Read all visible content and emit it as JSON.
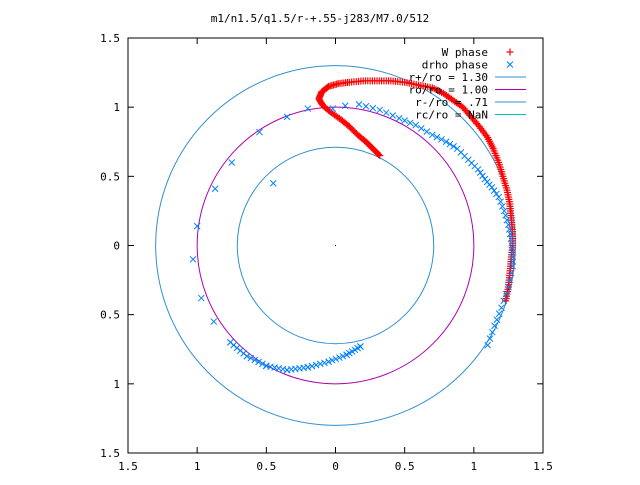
{
  "chart_data": {
    "type": "scatter",
    "title": "m1/n1.5/q1.5/r-+.55-j283/M7.0/512",
    "xlabel": "",
    "ylabel": "",
    "xlim": [
      -1.5,
      1.5
    ],
    "ylim": [
      -1.5,
      1.5
    ],
    "x_ticks": [
      {
        "value": -1.5,
        "label": "1.5"
      },
      {
        "value": -1.0,
        "label": "1"
      },
      {
        "value": -0.5,
        "label": "0.5"
      },
      {
        "value": 0.0,
        "label": "0"
      },
      {
        "value": 0.5,
        "label": "0.5"
      },
      {
        "value": 1.0,
        "label": "1"
      },
      {
        "value": 1.5,
        "label": "1.5"
      }
    ],
    "y_ticks": [
      {
        "value": 1.5,
        "label": "1.5"
      },
      {
        "value": 1.0,
        "label": "1"
      },
      {
        "value": 0.5,
        "label": "0.5"
      },
      {
        "value": 0.0,
        "label": "0"
      },
      {
        "value": -0.5,
        "label": "0.5"
      },
      {
        "value": -1.0,
        "label": "1"
      },
      {
        "value": -1.5,
        "label": "1.5"
      }
    ],
    "grid": false,
    "legend_position": "top-right",
    "series": [
      {
        "name": "W phase",
        "marker": "plus",
        "color": "#ff0000",
        "points": [
          [
            0.32,
            0.65
          ],
          [
            0.27,
            0.7
          ],
          [
            0.22,
            0.75
          ],
          [
            0.16,
            0.8
          ],
          [
            0.1,
            0.86
          ],
          [
            0.04,
            0.91
          ],
          [
            -0.03,
            0.96
          ],
          [
            -0.09,
            1.01
          ],
          [
            -0.12,
            1.06
          ],
          [
            -0.1,
            1.11
          ],
          [
            -0.05,
            1.15
          ],
          [
            0.02,
            1.17
          ],
          [
            0.1,
            1.18
          ],
          [
            0.2,
            1.19
          ],
          [
            0.3,
            1.19
          ],
          [
            0.4,
            1.19
          ],
          [
            0.5,
            1.18
          ],
          [
            0.6,
            1.16
          ],
          [
            0.7,
            1.14
          ],
          [
            0.78,
            1.1
          ],
          [
            0.85,
            1.05
          ],
          [
            0.92,
            1.0
          ],
          [
            0.98,
            0.93
          ],
          [
            1.04,
            0.86
          ],
          [
            1.1,
            0.78
          ],
          [
            1.14,
            0.7
          ],
          [
            1.18,
            0.6
          ],
          [
            1.21,
            0.5
          ],
          [
            1.24,
            0.4
          ],
          [
            1.26,
            0.3
          ],
          [
            1.27,
            0.2
          ],
          [
            1.28,
            0.1
          ],
          [
            1.28,
            0.0
          ],
          [
            1.27,
            -0.1
          ],
          [
            1.26,
            -0.2
          ],
          [
            1.25,
            -0.3
          ],
          [
            1.23,
            -0.4
          ]
        ]
      },
      {
        "name": "drho phase",
        "marker": "cross",
        "color": "#0080ff",
        "points": [
          [
            -0.2,
            0.99
          ],
          [
            -0.35,
            0.93
          ],
          [
            -0.55,
            0.82
          ],
          [
            -0.75,
            0.6
          ],
          [
            -0.87,
            0.41
          ],
          [
            -1.0,
            0.14
          ],
          [
            -1.03,
            -0.1
          ],
          [
            -0.97,
            -0.38
          ],
          [
            -0.88,
            -0.55
          ],
          [
            -0.76,
            -0.7
          ],
          [
            -0.64,
            -0.8
          ],
          [
            -0.5,
            -0.87
          ],
          [
            -0.35,
            -0.9
          ],
          [
            -0.2,
            -0.88
          ],
          [
            -0.05,
            -0.84
          ],
          [
            0.08,
            -0.79
          ],
          [
            0.18,
            -0.73
          ],
          [
            0.17,
            1.02
          ],
          [
            0.32,
            0.98
          ],
          [
            0.46,
            0.92
          ],
          [
            0.58,
            0.87
          ],
          [
            0.7,
            0.8
          ],
          [
            0.8,
            0.75
          ],
          [
            0.88,
            0.7
          ],
          [
            0.96,
            0.62
          ],
          [
            1.03,
            0.55
          ],
          [
            1.08,
            0.48
          ],
          [
            1.13,
            0.42
          ],
          [
            1.18,
            0.35
          ],
          [
            1.22,
            0.25
          ],
          [
            1.25,
            0.15
          ],
          [
            1.27,
            0.05
          ],
          [
            1.28,
            -0.05
          ],
          [
            1.28,
            -0.15
          ],
          [
            1.25,
            -0.3
          ],
          [
            1.2,
            -0.45
          ],
          [
            1.15,
            -0.58
          ],
          [
            1.1,
            -0.72
          ],
          [
            -0.02,
            0.99
          ],
          [
            0.07,
            1.01
          ],
          [
            -0.45,
            0.45
          ]
        ]
      },
      {
        "name": "r+/ro = 1.30",
        "type": "circle",
        "radius": 1.3,
        "color": "#3090d0"
      },
      {
        "name": "ro/ro = 1.00",
        "type": "circle",
        "radius": 1.0,
        "color": "#b000b0"
      },
      {
        "name": "r-/ro = .71",
        "type": "circle",
        "radius": 0.71,
        "color": "#3090d0"
      },
      {
        "name": "rc/ro = NaN",
        "type": "circle",
        "radius": null,
        "color": "#00c0c0"
      }
    ]
  }
}
